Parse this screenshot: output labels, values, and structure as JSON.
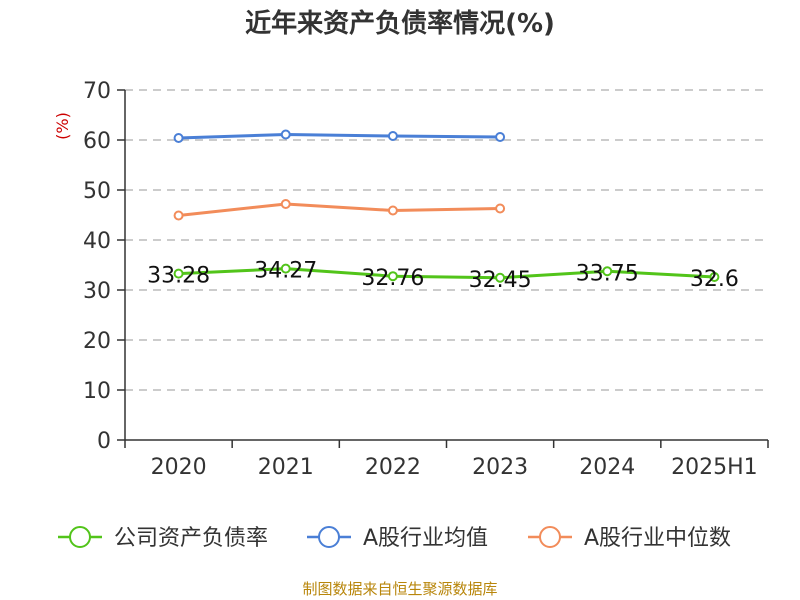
{
  "chart_data": {
    "type": "line",
    "title": "近年来资产负债率情况(%)",
    "ylabel": "(%)",
    "xlabel": "",
    "ylim": [
      0,
      70
    ],
    "yticks": [
      0,
      10,
      20,
      30,
      40,
      50,
      60,
      70
    ],
    "categories": [
      "2020",
      "2021",
      "2022",
      "2023",
      "2024",
      "2025H1"
    ],
    "grid": true,
    "legend_position": "bottom",
    "series": [
      {
        "name": "公司资产负债率",
        "color": "#52c41a",
        "values": [
          33.28,
          34.27,
          32.76,
          32.45,
          33.75,
          32.6
        ],
        "labels": [
          "33.28",
          "34.27",
          "32.76",
          "32.45",
          "33.75",
          "32.6"
        ]
      },
      {
        "name": "A股行业均值",
        "color": "#4a7fd6",
        "values": [
          60.4,
          61.1,
          60.8,
          60.6,
          null,
          null
        ]
      },
      {
        "name": "A股行业中位数",
        "color": "#f28c5a",
        "values": [
          44.9,
          47.2,
          45.9,
          46.3,
          null,
          null
        ]
      }
    ]
  },
  "source_text": "制图数据来自恒生聚源数据库"
}
